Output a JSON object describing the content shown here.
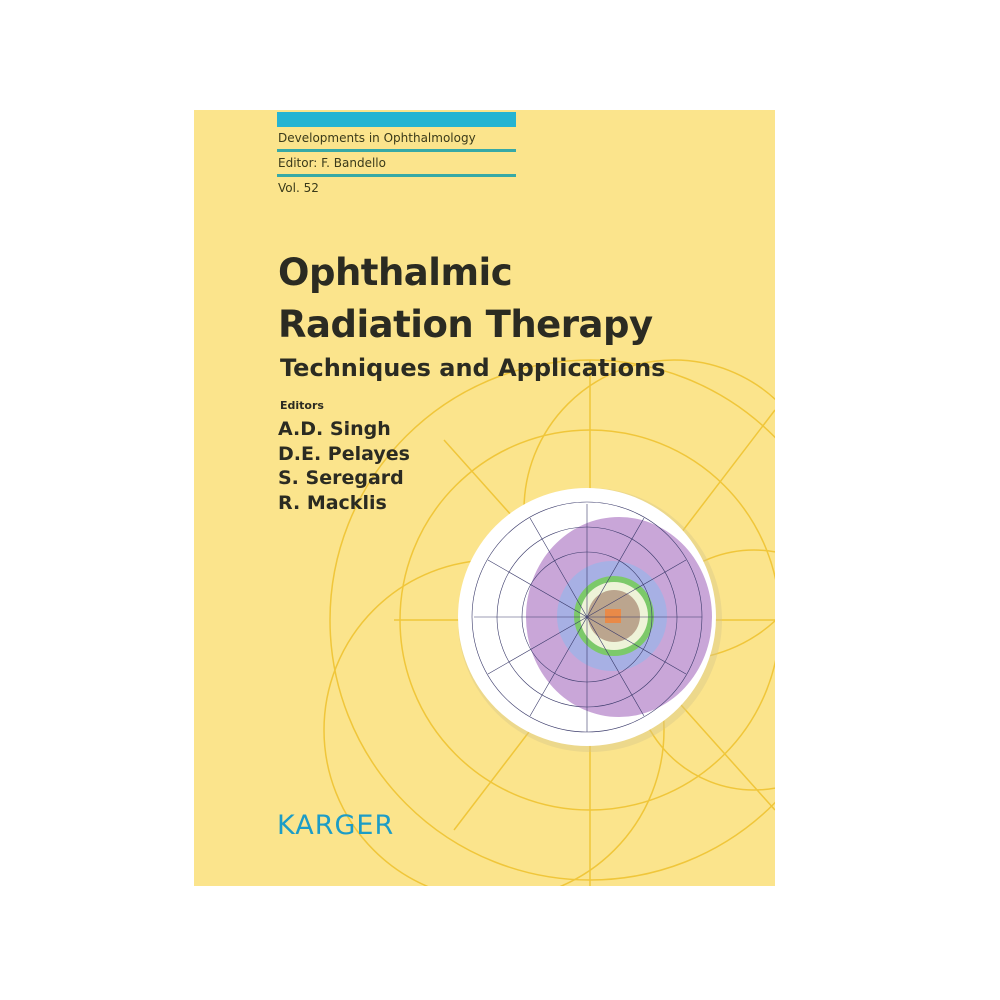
{
  "cover": {
    "series": "Developments in Ophthalmology",
    "series_editor": "Editor: F. Bandello",
    "volume": "Vol. 52",
    "title_line1": "Ophthalmic",
    "title_line2": "Radiation Therapy",
    "subtitle": "Techniques and Applications",
    "editors_label": "Editors",
    "editors": [
      "A.D. Singh",
      "D.E. Pelayes",
      "S. Seregard",
      "R. Macklis"
    ],
    "publisher": "KARGER"
  },
  "colors": {
    "background": "#fbe48c",
    "accent_bar": "#25b4d2",
    "rule": "#37a9a6",
    "publisher": "#1c9cc6",
    "diagram_purple": "#c9a6d8",
    "diagram_blue": "#a7b0e4",
    "diagram_green": "#7cc96a"
  }
}
